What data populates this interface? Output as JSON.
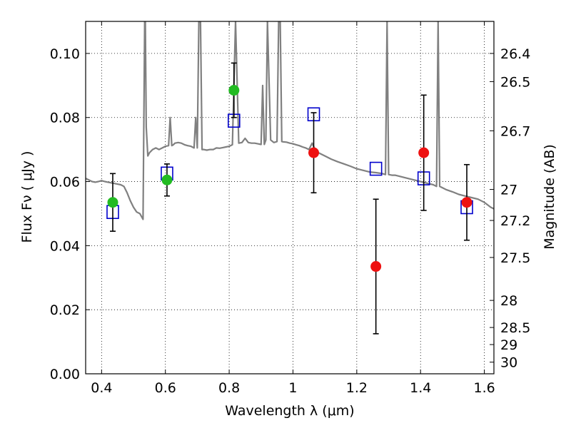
{
  "chart_data": {
    "type": "scatter",
    "xlabel": "Wavelength  λ (μm)",
    "ylabel": "Flux  Fν  ( μJy )",
    "y2label": "Magnitude (AB)",
    "xlim": [
      0.35,
      1.63
    ],
    "ylim": [
      0.0,
      0.11
    ],
    "grid": true,
    "x_ticks": [
      "0.4",
      "0.6",
      "0.8",
      "1",
      "1.2",
      "1.4",
      "1.6"
    ],
    "x_tick_values": [
      0.4,
      0.6,
      0.8,
      1.0,
      1.2,
      1.4,
      1.6
    ],
    "y_ticks": [
      "0.00",
      "0.02",
      "0.04",
      "0.06",
      "0.08",
      "0.10"
    ],
    "y_tick_values": [
      0.0,
      0.02,
      0.04,
      0.06,
      0.08,
      0.1
    ],
    "right_ticks": [
      "26.4",
      "26.5",
      "26.7",
      "27",
      "27.2",
      "27.5",
      "28",
      "28.5",
      "29",
      "30"
    ],
    "right_tick_values": [
      26.4,
      26.5,
      26.7,
      27.0,
      27.2,
      27.5,
      28.0,
      28.5,
      29.0,
      30.0
    ],
    "model_spectrum": {
      "color": "#808080",
      "x": [
        0.35,
        0.36,
        0.37,
        0.38,
        0.39,
        0.4,
        0.41,
        0.42,
        0.43,
        0.44,
        0.45,
        0.46,
        0.47,
        0.48,
        0.49,
        0.5,
        0.51,
        0.52,
        0.53,
        0.535,
        0.537,
        0.54,
        0.545,
        0.55,
        0.56,
        0.57,
        0.58,
        0.59,
        0.6,
        0.61,
        0.615,
        0.62,
        0.625,
        0.63,
        0.64,
        0.65,
        0.66,
        0.67,
        0.68,
        0.69,
        0.695,
        0.7,
        0.705,
        0.71,
        0.715,
        0.72,
        0.73,
        0.74,
        0.75,
        0.76,
        0.77,
        0.78,
        0.79,
        0.8,
        0.81,
        0.82,
        0.83,
        0.84,
        0.85,
        0.86,
        0.87,
        0.88,
        0.89,
        0.9,
        0.905,
        0.91,
        0.915,
        0.92,
        0.93,
        0.94,
        0.95,
        0.955,
        0.96,
        0.965,
        0.97,
        0.98,
        0.99,
        1.0,
        1.01,
        1.02,
        1.03,
        1.04,
        1.05,
        1.06,
        1.07,
        1.08,
        1.09,
        1.1,
        1.12,
        1.14,
        1.16,
        1.18,
        1.2,
        1.22,
        1.24,
        1.26,
        1.28,
        1.29,
        1.295,
        1.3,
        1.31,
        1.32,
        1.34,
        1.36,
        1.38,
        1.4,
        1.42,
        1.44,
        1.45,
        1.455,
        1.46,
        1.47,
        1.48,
        1.5,
        1.52,
        1.54,
        1.56,
        1.58,
        1.6,
        1.62,
        1.63
      ],
      "y": [
        0.061,
        0.0605,
        0.06,
        0.0598,
        0.06,
        0.0603,
        0.06,
        0.0598,
        0.0596,
        0.0594,
        0.0592,
        0.059,
        0.0585,
        0.0565,
        0.054,
        0.052,
        0.0505,
        0.05,
        0.0482,
        0.11,
        0.11,
        0.077,
        0.068,
        0.069,
        0.07,
        0.0705,
        0.07,
        0.0705,
        0.071,
        0.0712,
        0.08,
        0.0712,
        0.0715,
        0.072,
        0.0722,
        0.072,
        0.0715,
        0.0712,
        0.071,
        0.0705,
        0.08,
        0.0705,
        0.11,
        0.11,
        0.07,
        0.07,
        0.0698,
        0.07,
        0.07,
        0.0705,
        0.0704,
        0.0706,
        0.0708,
        0.071,
        0.0715,
        0.11,
        0.072,
        0.0722,
        0.0735,
        0.0722,
        0.072,
        0.072,
        0.0718,
        0.0716,
        0.09,
        0.0716,
        0.073,
        0.11,
        0.073,
        0.0722,
        0.0725,
        0.11,
        0.11,
        0.0725,
        0.0724,
        0.0723,
        0.072,
        0.0718,
        0.0715,
        0.0712,
        0.0708,
        0.0705,
        0.07,
        0.072,
        0.0698,
        0.069,
        0.0685,
        0.068,
        0.067,
        0.0662,
        0.0655,
        0.0648,
        0.064,
        0.0635,
        0.063,
        0.0628,
        0.0625,
        0.0622,
        0.11,
        0.0622,
        0.062,
        0.062,
        0.0615,
        0.061,
        0.0605,
        0.06,
        0.0595,
        0.059,
        0.0585,
        0.11,
        0.0585,
        0.058,
        0.0575,
        0.0568,
        0.056,
        0.0555,
        0.055,
        0.0545,
        0.0535,
        0.052,
        0.0515
      ]
    },
    "model_photometry": {
      "marker": "open-square",
      "color": "#0000cc",
      "x": [
        0.435,
        0.605,
        0.815,
        1.065,
        1.26,
        1.41,
        1.545
      ],
      "y": [
        0.0505,
        0.0625,
        0.079,
        0.081,
        0.064,
        0.061,
        0.052
      ]
    },
    "observed_green": {
      "marker": "filled-circle",
      "color": "#22bb22",
      "x": [
        0.435,
        0.605,
        0.815
      ],
      "y": [
        0.0535,
        0.0605,
        0.0885
      ],
      "err": [
        0.009,
        0.005,
        0.0085
      ]
    },
    "observed_red": {
      "marker": "filled-circle",
      "color": "#ee1111",
      "x": [
        1.065,
        1.26,
        1.41,
        1.545
      ],
      "y": [
        0.069,
        0.0335,
        0.069,
        0.0535
      ],
      "err": [
        0.0125,
        0.021,
        0.018,
        0.0118
      ]
    }
  }
}
